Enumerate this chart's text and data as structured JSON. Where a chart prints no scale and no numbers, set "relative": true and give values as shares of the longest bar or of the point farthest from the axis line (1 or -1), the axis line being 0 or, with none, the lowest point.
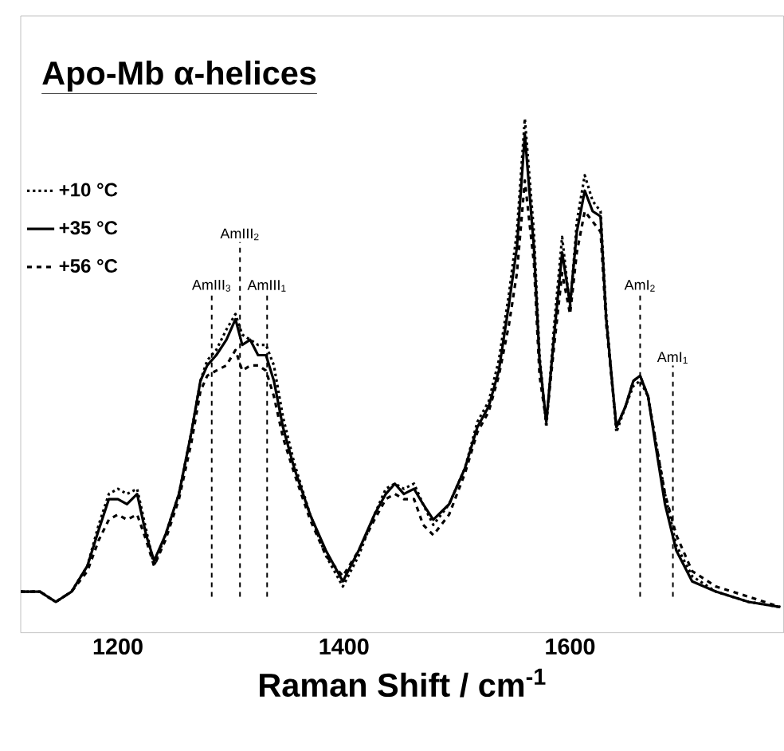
{
  "chart_data": {
    "type": "line",
    "title": "Apo-Mb α-helices",
    "xlabel": "Raman Shift / cm$^{-1}$",
    "relative": true,
    "xlim": [
      1114,
      1789
    ],
    "xticks": [
      1200,
      1400,
      1600
    ],
    "grid": false,
    "legend": "top left",
    "marker": "none",
    "x": [
      1114,
      1131,
      1145,
      1159,
      1173,
      1183,
      1192,
      1200,
      1208,
      1217,
      1225,
      1232,
      1242,
      1254,
      1265,
      1273,
      1279,
      1287,
      1296,
      1304,
      1310,
      1317,
      1324,
      1331,
      1338,
      1346,
      1356,
      1370,
      1384,
      1399,
      1413,
      1427,
      1437,
      1445,
      1453,
      1462,
      1470,
      1479,
      1493,
      1507,
      1518,
      1528,
      1537,
      1546,
      1553,
      1560,
      1568,
      1573,
      1579,
      1586,
      1593,
      1600,
      1606,
      1613,
      1620,
      1627,
      1632,
      1641,
      1649,
      1656,
      1662,
      1669,
      1676,
      1684,
      1694,
      1708,
      1729,
      1758,
      1786
    ],
    "series": [
      {
        "name": "+10 °C",
        "color": "#000000",
        "line_style": "dotted",
        "values": [
          0.08,
          0.08,
          0.06,
          0.08,
          0.13,
          0.21,
          0.27,
          0.28,
          0.27,
          0.28,
          0.2,
          0.13,
          0.19,
          0.27,
          0.39,
          0.49,
          0.53,
          0.55,
          0.59,
          0.62,
          0.58,
          0.57,
          0.56,
          0.56,
          0.52,
          0.42,
          0.33,
          0.23,
          0.15,
          0.09,
          0.15,
          0.23,
          0.28,
          0.29,
          0.28,
          0.29,
          0.25,
          0.21,
          0.25,
          0.32,
          0.41,
          0.45,
          0.53,
          0.66,
          0.78,
          1.0,
          0.78,
          0.54,
          0.4,
          0.6,
          0.77,
          0.63,
          0.8,
          0.89,
          0.84,
          0.82,
          0.62,
          0.39,
          0.44,
          0.48,
          0.49,
          0.46,
          0.37,
          0.27,
          0.17,
          0.11,
          0.08,
          0.06,
          0.05
        ]
      },
      {
        "name": "+35 °C",
        "color": "#000000",
        "line_style": "solid",
        "values": [
          0.08,
          0.08,
          0.06,
          0.08,
          0.13,
          0.2,
          0.26,
          0.26,
          0.25,
          0.27,
          0.19,
          0.14,
          0.19,
          0.27,
          0.39,
          0.49,
          0.52,
          0.54,
          0.57,
          0.61,
          0.56,
          0.57,
          0.54,
          0.54,
          0.49,
          0.4,
          0.32,
          0.23,
          0.16,
          0.1,
          0.16,
          0.23,
          0.27,
          0.29,
          0.27,
          0.28,
          0.25,
          0.22,
          0.25,
          0.32,
          0.4,
          0.44,
          0.51,
          0.64,
          0.75,
          0.97,
          0.75,
          0.53,
          0.41,
          0.58,
          0.74,
          0.64,
          0.78,
          0.86,
          0.82,
          0.81,
          0.61,
          0.4,
          0.44,
          0.49,
          0.5,
          0.46,
          0.36,
          0.25,
          0.16,
          0.1,
          0.08,
          0.06,
          0.05
        ]
      },
      {
        "name": "+56 °C",
        "color": "#000000",
        "line_style": "dashed",
        "values": [
          0.08,
          0.08,
          0.06,
          0.08,
          0.12,
          0.18,
          0.22,
          0.23,
          0.22,
          0.23,
          0.18,
          0.13,
          0.18,
          0.26,
          0.37,
          0.47,
          0.5,
          0.51,
          0.52,
          0.55,
          0.51,
          0.52,
          0.52,
          0.51,
          0.46,
          0.38,
          0.31,
          0.22,
          0.15,
          0.11,
          0.16,
          0.22,
          0.26,
          0.27,
          0.26,
          0.26,
          0.21,
          0.19,
          0.23,
          0.31,
          0.39,
          0.43,
          0.5,
          0.6,
          0.7,
          0.88,
          0.72,
          0.5,
          0.41,
          0.56,
          0.7,
          0.62,
          0.74,
          0.82,
          0.8,
          0.78,
          0.6,
          0.4,
          0.44,
          0.49,
          0.5,
          0.46,
          0.37,
          0.27,
          0.19,
          0.12,
          0.09,
          0.07,
          0.05
        ]
      }
    ],
    "ref_lines": [
      {
        "axis": "x",
        "value": 1283,
        "label": "AmIII$_{3}$",
        "line_style": "dashed"
      },
      {
        "axis": "x",
        "value": 1308,
        "label": "AmIII$_{2}$",
        "line_style": "dashed"
      },
      {
        "axis": "x",
        "value": 1332,
        "label": "AmIII$_{1}$",
        "line_style": "dashed"
      },
      {
        "axis": "x",
        "value": 1662,
        "label": "AmI$_{2}$",
        "line_style": "dashed"
      },
      {
        "axis": "x",
        "value": 1691,
        "label": "AmI$_{1}$",
        "line_style": "dashed"
      }
    ]
  }
}
